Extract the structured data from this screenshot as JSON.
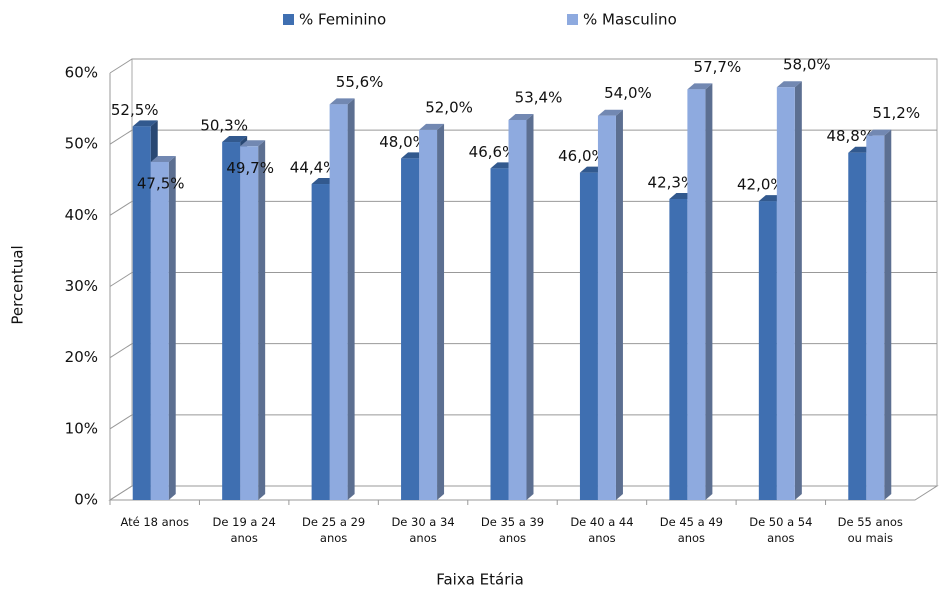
{
  "chart_data": {
    "type": "bar3d",
    "x_label": "Faixa Etária",
    "y_label": "Percentual",
    "categories": [
      "Até 18 anos",
      "De 19 a 24 anos",
      "De 25 a 29 anos",
      "De 30 a 34 anos",
      "De 35 a 39 anos",
      "De 40 a 44 anos",
      "De 45 a 49 anos",
      "De 50 a 54 anos",
      "De 55 anos ou mais"
    ],
    "series": [
      {
        "name": "% Feminino",
        "color": "#3f6fb1",
        "values": [
          52.5,
          50.3,
          44.4,
          48.0,
          46.6,
          46.0,
          42.3,
          42.0,
          48.8
        ],
        "value_labels": [
          "52,5%",
          "50,3%",
          "44,4%",
          "48,0%",
          "46,6%",
          "46,0%",
          "42,3%",
          "42,0%",
          "48,8%"
        ]
      },
      {
        "name": "% Masculino",
        "color": "#8eaadf",
        "values": [
          47.5,
          49.7,
          55.6,
          52.0,
          53.4,
          54.0,
          57.7,
          58.0,
          51.2
        ],
        "value_labels": [
          "47,5%",
          "49,7%",
          "55,6%",
          "52,0%",
          "53,4%",
          "54,0%",
          "57,7%",
          "58,0%",
          "51,2%"
        ]
      }
    ],
    "ylim": [
      0,
      60
    ],
    "yticks": [
      {
        "value": 0,
        "label": "0%"
      },
      {
        "value": 10,
        "label": "10%"
      },
      {
        "value": 20,
        "label": "20%"
      },
      {
        "value": 30,
        "label": "30%"
      },
      {
        "value": 40,
        "label": "40%"
      },
      {
        "value": 50,
        "label": "50%"
      },
      {
        "value": 60,
        "label": "60%"
      }
    ],
    "grid": true,
    "legend": "top"
  }
}
